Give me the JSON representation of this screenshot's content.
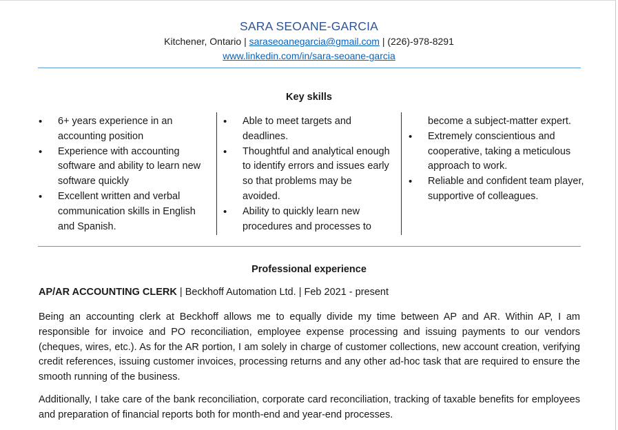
{
  "header": {
    "name": "SARA SEOANE-GARCIA",
    "location": "Kitchener, Ontario",
    "separator": "|",
    "email": "saraseoanegarcia@gmail.com",
    "phone": "(226)-978-8291",
    "linkedin": "www.linkedin.com/in/sara-seoane-garcia"
  },
  "skills": {
    "heading": "Key skills",
    "col1": [
      "6+ years experience in an accounting position",
      "Experience with accounting software and ability to learn new software quickly",
      "Excellent written and verbal communication skills in English and Spanish."
    ],
    "col2": [
      "Able to meet targets and deadlines.",
      "Thoughtful and analytical enough to identify errors and issues early so that problems may be avoided.",
      "Ability to quickly learn new procedures and processes to"
    ],
    "col3_continuation": "become a subject-matter expert.",
    "col3": [
      "Extremely conscientious and cooperative, taking a meticulous approach to work.",
      "Reliable and confident team player, supportive of colleagues."
    ]
  },
  "experience": {
    "heading": "Professional experience",
    "job_title": "AP/AR ACCOUNTING CLERK",
    "company": "Beckhoff Automation Ltd.",
    "dates": "Feb 2021 - present",
    "paragraph1": "Being an accounting clerk at Beckhoff allows me to equally divide my time between AP and AR. Within AP, I am responsible for invoice and PO reconciliation, employee expense processing and issuing payments to our vendors (cheques, wires, etc.). As for the AR portion, I am solely in charge of customer collections, new account creation, verifying credit references, issuing customer invoices, processing returns and any other ad-hoc task that are required to ensure the smooth running of the business.",
    "paragraph2": "Additionally, I take care of the bank reconciliation, corporate card reconciliation, tracking of taxable benefits for employees and preparation of financial reports both for month-end and year-end processes."
  },
  "colors": {
    "name": "#2f5496",
    "link": "#0563c1",
    "rule": "#5b9bd5"
  }
}
